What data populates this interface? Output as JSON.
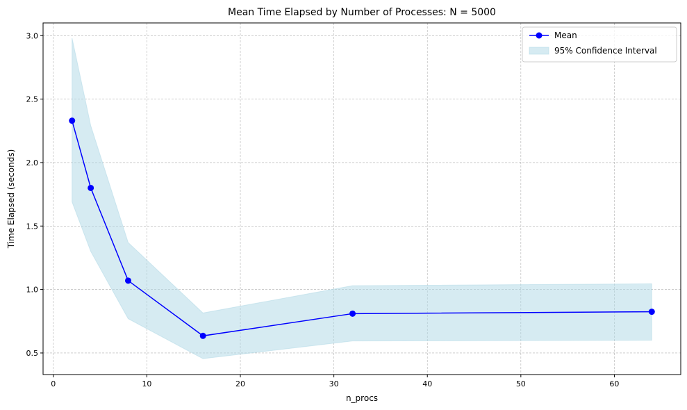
{
  "chart_data": {
    "type": "line",
    "title": "Mean Time Elapsed by Number of Processes: N = 5000",
    "xlabel": "n_procs",
    "ylabel": "Time Elapsed (seconds)",
    "xlim": [
      -1.1,
      67.1
    ],
    "ylim": [
      0.33,
      3.1
    ],
    "xticks": [
      0,
      10,
      20,
      30,
      40,
      50,
      60
    ],
    "xtick_labels": [
      "0",
      "10",
      "20",
      "30",
      "40",
      "50",
      "60"
    ],
    "yticks": [
      0.5,
      1.0,
      1.5,
      2.0,
      2.5,
      3.0
    ],
    "ytick_labels": [
      "0.5",
      "1.0",
      "1.5",
      "2.0",
      "2.5",
      "3.0"
    ],
    "grid": true,
    "legend_position": "top-right",
    "x": [
      2,
      4,
      8,
      16,
      32,
      64
    ],
    "series": [
      {
        "name": "Mean",
        "values": [
          2.33,
          1.8,
          1.07,
          0.635,
          0.81,
          0.825
        ],
        "color": "#0000ff",
        "marker": "circle"
      }
    ],
    "band": {
      "name": "95% Confidence Interval",
      "lower": [
        1.69,
        1.3,
        0.77,
        0.455,
        0.595,
        0.6
      ],
      "upper": [
        2.98,
        2.29,
        1.37,
        0.815,
        1.03,
        1.045
      ],
      "color": "#add8e6",
      "opacity": 0.5
    }
  }
}
